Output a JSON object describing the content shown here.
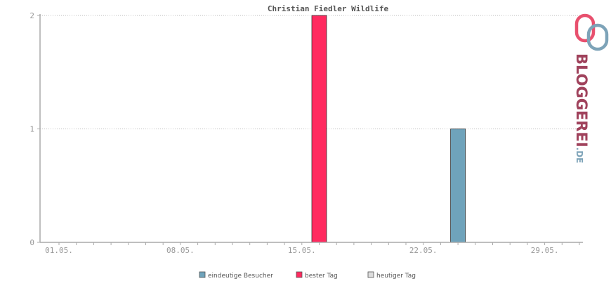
{
  "chart_data": {
    "type": "bar",
    "title": "Christian Fiedler Wildlife",
    "x_start": "01.05.",
    "x_end": "31.05.",
    "x_tick_labels": [
      "01.05.",
      "08.05.",
      "15.05.",
      "22.05.",
      "29.05."
    ],
    "ylim": [
      0,
      2
    ],
    "y_ticks": [
      0,
      1,
      2
    ],
    "grid": true,
    "legend_position": "bottom",
    "series": [
      {
        "name": "eindeutige Besucher",
        "color": "#6fa3bb",
        "points": [
          {
            "x": "24.05.",
            "y": 1
          }
        ]
      },
      {
        "name": "bester Tag",
        "color": "#ff2a5f",
        "points": [
          {
            "x": "16.05.",
            "y": 2
          }
        ]
      },
      {
        "name": "heutiger Tag",
        "color": "#dddddd",
        "points": []
      }
    ]
  },
  "branding": {
    "logo": "bloggerei-logo-icon",
    "text_main": "BLOGGEREI",
    "text_suffix": ".DE",
    "colors": {
      "pink": "#e8506e",
      "blue": "#7da3b8",
      "dark": "#a0425c"
    }
  }
}
